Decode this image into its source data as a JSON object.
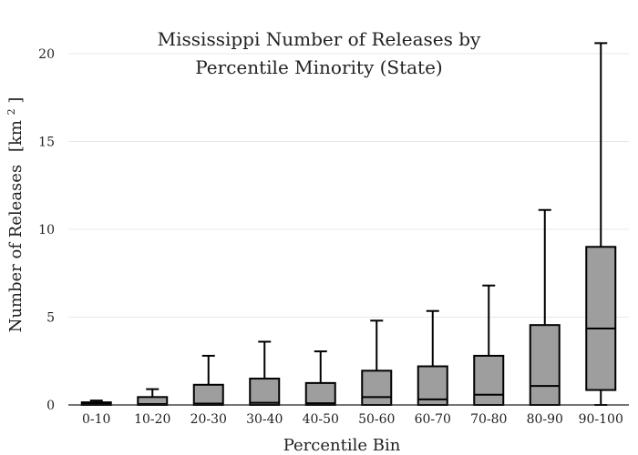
{
  "chart_data": {
    "type": "box",
    "title_lines": [
      "Mississippi Number of Releases by",
      "Percentile Minority (State)"
    ],
    "xlabel": "Percentile Bin",
    "ylabel": "Number of Releases",
    "ylabel_unit_base": "[km",
    "ylabel_unit_sup": "2",
    "ylabel_unit_close": "]",
    "ylim": [
      0,
      21.5
    ],
    "yticks": [
      0,
      5,
      10,
      15,
      20
    ],
    "grid": true,
    "box_color": "#9e9e9e",
    "categories": [
      "0-10",
      "10-20",
      "20-30",
      "30-40",
      "40-50",
      "50-60",
      "60-70",
      "70-80",
      "80-90",
      "90-100"
    ],
    "boxes": [
      {
        "min": 0,
        "q1": 0,
        "median": 0.05,
        "q3": 0.15,
        "max": 0.25
      },
      {
        "min": 0,
        "q1": 0,
        "median": 0.05,
        "q3": 0.45,
        "max": 0.9
      },
      {
        "min": 0,
        "q1": 0,
        "median": 0.08,
        "q3": 1.15,
        "max": 2.8
      },
      {
        "min": 0,
        "q1": 0,
        "median": 0.12,
        "q3": 1.5,
        "max": 3.6
      },
      {
        "min": 0,
        "q1": 0,
        "median": 0.1,
        "q3": 1.25,
        "max": 3.05
      },
      {
        "min": 0,
        "q1": 0,
        "median": 0.45,
        "q3": 1.95,
        "max": 4.8
      },
      {
        "min": 0,
        "q1": 0,
        "median": 0.32,
        "q3": 2.2,
        "max": 5.35
      },
      {
        "min": 0,
        "q1": 0,
        "median": 0.58,
        "q3": 2.8,
        "max": 6.8
      },
      {
        "min": 0,
        "q1": 0,
        "median": 1.08,
        "q3": 4.55,
        "max": 11.1
      },
      {
        "min": 0,
        "q1": 0.85,
        "median": 4.35,
        "q3": 9.0,
        "max": 20.6
      }
    ]
  }
}
